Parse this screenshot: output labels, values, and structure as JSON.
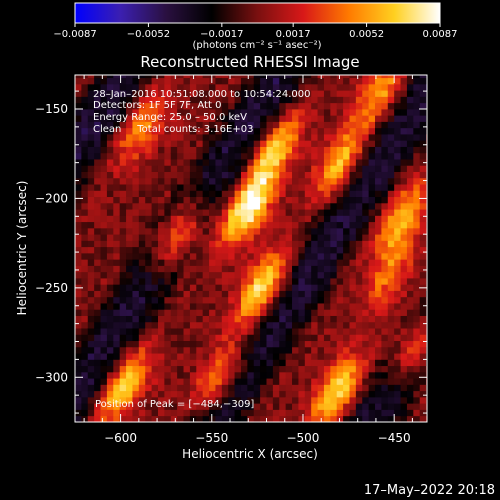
{
  "chart_data": {
    "type": "heatmap",
    "title": "Reconstructed RHESSI Image",
    "xlabel": "Heliocentric X (arcsec)",
    "ylabel": "Heliocentric Y (arcsec)",
    "xlim": [
      -625,
      -432
    ],
    "ylim": [
      -325,
      -131
    ],
    "x_ticks": [
      -600,
      -550,
      -500,
      -450
    ],
    "x_tick_labels": [
      "−600",
      "−550",
      "−500",
      "−450"
    ],
    "y_ticks": [
      -150,
      -200,
      -250,
      -300
    ],
    "y_tick_labels": [
      "−150",
      "−200",
      "−250",
      "−300"
    ],
    "colorbar": {
      "min": -0.0087,
      "max": 0.0087,
      "ticks": [
        -0.0087,
        -0.0052,
        -0.0017,
        0.0017,
        0.0052,
        0.0087
      ],
      "tick_labels": [
        "−0.0087",
        "−0.0052",
        "−0.0017",
        "0.0017",
        "0.0052",
        "0.0087"
      ],
      "units": "(photons cm⁻² s⁻¹ asec⁻²)",
      "colormap": [
        "#0000ff",
        "#3b1fb0",
        "#2a1040",
        "#000000",
        "#7a1010",
        "#d81818",
        "#ff7a00",
        "#ffd020",
        "#ffffff"
      ]
    },
    "annotations": [
      "28–Jan–2016 10:51:08.000 to 10:54:24.000",
      "Detectors: 1F 5F 7F, Att 0",
      "Energy Range: 25.0 – 50.0 keV",
      "Clean     Total counts: 3.16E+03"
    ],
    "peak_label": "Position of Peak = [−484,−309]",
    "peak": [
      -484,
      -309
    ],
    "grid": false,
    "sources": [
      {
        "x": -530,
        "y": -205,
        "amp": 0.0087
      },
      {
        "x": -522,
        "y": -250,
        "amp": 0.0075
      },
      {
        "x": -568,
        "y": -220,
        "amp": 0.0068
      },
      {
        "x": -515,
        "y": -172,
        "amp": 0.006
      },
      {
        "x": -480,
        "y": -180,
        "amp": 0.0058
      },
      {
        "x": -445,
        "y": -210,
        "amp": 0.006
      },
      {
        "x": -588,
        "y": -160,
        "amp": 0.0045
      },
      {
        "x": -598,
        "y": -305,
        "amp": 0.0065
      },
      {
        "x": -545,
        "y": -300,
        "amp": 0.0055
      },
      {
        "x": -482,
        "y": -308,
        "amp": 0.007
      },
      {
        "x": -438,
        "y": -282,
        "amp": 0.006
      },
      {
        "x": -453,
        "y": -242,
        "amp": 0.004
      },
      {
        "x": -458,
        "y": -140,
        "amp": 0.005
      }
    ]
  },
  "timestamp": "17–May–2022 20:18"
}
